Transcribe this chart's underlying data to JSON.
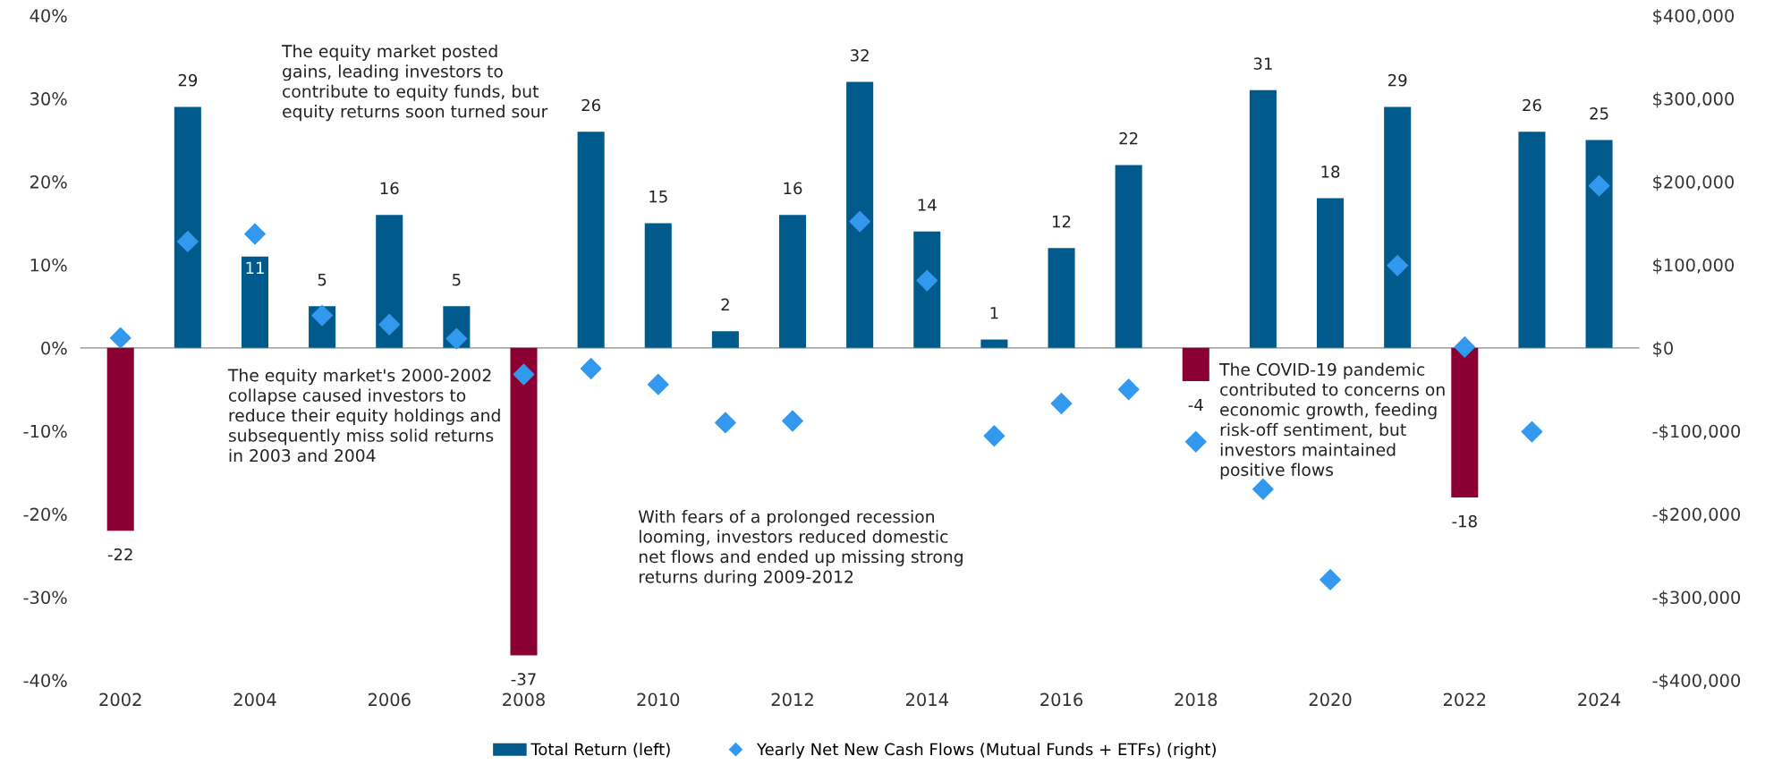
{
  "chart_data": {
    "type": "bar",
    "categories": [
      "2002",
      null,
      "2004",
      null,
      "2006",
      null,
      "2008",
      null,
      "2010",
      null,
      "2012",
      null,
      "2014",
      null,
      "2016",
      null,
      "2018",
      null,
      "2020",
      null,
      "2022",
      null,
      "2024"
    ],
    "series": [
      {
        "name": "Total Return (left)",
        "color": "#005a8c",
        "value_labels": [
          "-22",
          "29",
          "11",
          "5",
          "16",
          "5",
          "-37",
          "26",
          "15",
          "2",
          "16",
          "32",
          "14",
          "1",
          "12",
          "22",
          "-4",
          "31",
          "18",
          "29",
          "-18",
          "26",
          "25"
        ],
        "colors": [
          "#8b0032",
          "#005a8c",
          "#005a8c",
          "#005a8c",
          "#005a8c",
          "#005a8c",
          "#8b0032",
          "#005a8c",
          "#005a8c",
          "#005a8c",
          "#005a8c",
          "#005a8c",
          "#005a8c",
          "#005a8c",
          "#005a8c",
          "#005a8c",
          "#8b0032",
          "#005a8c",
          "#005a8c",
          "#005a8c",
          "#8b0032",
          "#005a8c",
          "#005a8c"
        ],
        "values": [
          -22,
          29,
          11,
          5,
          16,
          5,
          -37,
          26,
          15,
          2,
          16,
          32,
          14,
          1,
          12,
          22,
          -4,
          31,
          18,
          29,
          -18,
          26,
          25
        ]
      },
      {
        "name": "Yearly Net New Cash Flows (Mutual Funds + ETFs) (right)",
        "type": "scatter",
        "axis": "y2",
        "color": "#3399ee",
        "marker": "diamond",
        "values": [
          12000,
          128000,
          137000,
          39000,
          28000,
          11000,
          -32000,
          -25000,
          -44000,
          -90000,
          -88000,
          152000,
          81000,
          -106000,
          -67000,
          -50000,
          -113000,
          -170000,
          -279000,
          99000,
          1000,
          -101000,
          195000
        ]
      }
    ],
    "ref_lines": [
      {
        "axis": "y",
        "value": 0,
        "color": "#aaaaaa"
      }
    ],
    "ylim": [
      -40,
      40
    ],
    "yticks": [
      {
        "value": -40,
        "label": "-40%"
      },
      {
        "value": -30,
        "label": "-30%"
      },
      {
        "value": -20,
        "label": "-20%"
      },
      {
        "value": -10,
        "label": "-10%"
      },
      {
        "value": 0,
        "label": "0%"
      },
      {
        "value": 10,
        "label": "10%"
      },
      {
        "value": 20,
        "label": "20%"
      },
      {
        "value": 30,
        "label": "30%"
      },
      {
        "value": 40,
        "label": "40%"
      }
    ],
    "y2lim": [
      -400000,
      400000
    ],
    "y2ticks": [
      {
        "value": -400000,
        "label": "-$400,000"
      },
      {
        "value": -300000,
        "label": "-$300,000"
      },
      {
        "value": -200000,
        "label": "-$200,000"
      },
      {
        "value": -100000,
        "label": "-$100,000"
      },
      {
        "value": 0,
        "label": "$0"
      },
      {
        "value": 100000,
        "label": "$100,000"
      },
      {
        "value": 200000,
        "label": "$200,000"
      },
      {
        "value": 300000,
        "label": "$300,000"
      },
      {
        "value": 400000,
        "label": "$400,000"
      }
    ],
    "grid": false,
    "legend": "bottom",
    "annotations": [
      "The equity market posted\ngains, leading investors to\ncontribute to equity funds, but\nequity returns soon turned sour",
      "The equity market's 2000-2002\ncollapse caused investors to\nreduce their equity holdings and\nsubsequently miss solid returns\nin 2003 and 2004",
      "With fears of a prolonged recession\nlooming, investors reduced domestic\nnet flows and ended up missing strong\nreturns during 2009-2012",
      "The COVID-19 pandemic\ncontributed to concerns on\neconomic growth, feeding\nrisk-off sentiment, but\ninvestors maintained\npositive flows"
    ]
  }
}
